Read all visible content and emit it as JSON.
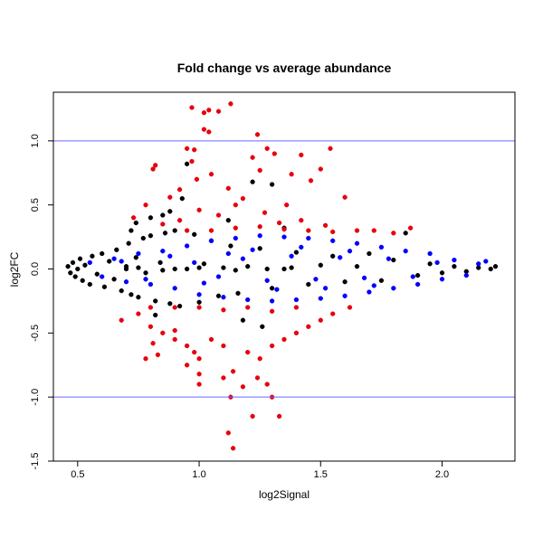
{
  "chart_data": {
    "type": "scatter",
    "title": "Fold change vs average abundance",
    "xlabel": "log2Signal",
    "ylabel": "log2FC",
    "xlim": [
      0.4,
      2.3
    ],
    "ylim": [
      -1.5,
      1.38
    ],
    "x_ticks": [
      0.5,
      1.0,
      1.5,
      2.0
    ],
    "x_tick_labels": [
      "0.5",
      "1.0",
      "1.5",
      "2.0"
    ],
    "y_ticks": [
      -1.5,
      -1.0,
      -0.5,
      0.0,
      0.5,
      1.0
    ],
    "y_tick_labels": [
      "-1.5",
      "-1.0",
      "-0.5",
      "0.0",
      "0.5",
      "1.0"
    ],
    "grid": false,
    "reference_lines": [
      {
        "axis": "y",
        "value": 1.0,
        "color": "#6a6aff"
      },
      {
        "axis": "y",
        "value": -1.0,
        "color": "#6a6aff"
      }
    ],
    "colors": {
      "red": "#e8000b",
      "black": "#000000",
      "blue": "#0000ff"
    },
    "series": [
      {
        "color": "black",
        "points": [
          [
            0.46,
            0.02
          ],
          [
            0.47,
            -0.03
          ],
          [
            0.48,
            0.05
          ],
          [
            0.49,
            -0.06
          ],
          [
            0.5,
            0.0
          ],
          [
            0.51,
            0.08
          ],
          [
            0.52,
            -0.09
          ],
          [
            0.53,
            0.03
          ],
          [
            0.55,
            -0.12
          ],
          [
            0.56,
            0.1
          ],
          [
            0.58,
            -0.04
          ],
          [
            0.6,
            0.12
          ],
          [
            0.61,
            -0.14
          ],
          [
            0.63,
            0.06
          ],
          [
            0.65,
            -0.08
          ],
          [
            0.66,
            0.15
          ],
          [
            0.68,
            -0.17
          ],
          [
            0.7,
            0.02
          ],
          [
            0.71,
            0.2
          ],
          [
            0.72,
            -0.2
          ],
          [
            0.74,
            0.09
          ],
          [
            0.75,
            -0.22
          ],
          [
            0.77,
            0.24
          ],
          [
            0.78,
            -0.03
          ],
          [
            0.8,
            0.26
          ],
          [
            0.82,
            -0.25
          ],
          [
            0.84,
            0.05
          ],
          [
            0.86,
            0.28
          ],
          [
            0.88,
            -0.27
          ],
          [
            0.9,
            0.3
          ],
          [
            0.92,
            -0.29
          ],
          [
            0.95,
            0.0
          ],
          [
            0.98,
            0.27
          ],
          [
            1.0,
            -0.26
          ],
          [
            1.02,
            0.04
          ],
          [
            1.05,
            0.22
          ],
          [
            1.08,
            -0.21
          ],
          [
            1.1,
            0.01
          ],
          [
            1.13,
            0.18
          ],
          [
            1.16,
            -0.19
          ],
          [
            1.2,
            0.02
          ],
          [
            1.25,
            0.16
          ],
          [
            1.3,
            -0.15
          ],
          [
            1.35,
            0.0
          ],
          [
            1.4,
            0.13
          ],
          [
            1.45,
            -0.12
          ],
          [
            1.5,
            0.03
          ],
          [
            1.55,
            0.1
          ],
          [
            1.6,
            -0.1
          ],
          [
            1.65,
            0.02
          ],
          [
            1.7,
            0.12
          ],
          [
            1.75,
            -0.09
          ],
          [
            1.8,
            0.07
          ],
          [
            1.85,
            0.28
          ],
          [
            1.9,
            -0.05
          ],
          [
            1.95,
            0.04
          ],
          [
            2.0,
            -0.03
          ],
          [
            2.05,
            0.02
          ],
          [
            2.1,
            -0.02
          ],
          [
            2.15,
            0.01
          ],
          [
            2.2,
            0.0
          ],
          [
            2.22,
            0.02
          ],
          [
            0.72,
            0.3
          ],
          [
            0.74,
            0.36
          ],
          [
            0.8,
            0.4
          ],
          [
            0.85,
            0.42
          ],
          [
            0.82,
            -0.36
          ],
          [
            0.88,
            0.45
          ],
          [
            0.93,
            0.55
          ],
          [
            0.95,
            0.82
          ],
          [
            1.12,
            0.38
          ],
          [
            1.18,
            -0.4
          ],
          [
            1.22,
            0.68
          ],
          [
            1.26,
            -0.45
          ],
          [
            1.3,
            0.66
          ],
          [
            1.35,
            0.32
          ],
          [
            0.7,
            0.0
          ],
          [
            0.75,
            0.01
          ],
          [
            0.85,
            -0.01
          ],
          [
            0.9,
            0.0
          ],
          [
            1.0,
            0.01
          ],
          [
            1.15,
            -0.01
          ],
          [
            1.28,
            0.0
          ],
          [
            1.38,
            0.01
          ]
        ]
      },
      {
        "color": "blue",
        "points": [
          [
            0.55,
            0.05
          ],
          [
            0.6,
            -0.06
          ],
          [
            0.65,
            0.08
          ],
          [
            0.7,
            -0.1
          ],
          [
            0.75,
            0.12
          ],
          [
            0.8,
            -0.12
          ],
          [
            0.85,
            0.14
          ],
          [
            0.9,
            -0.15
          ],
          [
            0.95,
            0.18
          ],
          [
            1.0,
            -0.2
          ],
          [
            1.05,
            0.22
          ],
          [
            1.1,
            -0.22
          ],
          [
            1.15,
            0.24
          ],
          [
            1.2,
            -0.24
          ],
          [
            1.25,
            0.26
          ],
          [
            1.3,
            -0.25
          ],
          [
            1.35,
            0.25
          ],
          [
            1.4,
            -0.24
          ],
          [
            1.45,
            0.24
          ],
          [
            1.5,
            -0.23
          ],
          [
            1.55,
            0.22
          ],
          [
            1.6,
            -0.21
          ],
          [
            1.65,
            0.2
          ],
          [
            1.7,
            -0.18
          ],
          [
            1.75,
            0.17
          ],
          [
            1.8,
            -0.15
          ],
          [
            1.85,
            0.14
          ],
          [
            1.9,
            -0.12
          ],
          [
            1.95,
            0.12
          ],
          [
            2.0,
            -0.08
          ],
          [
            2.05,
            0.07
          ],
          [
            2.1,
            -0.05
          ],
          [
            2.15,
            0.04
          ],
          [
            2.18,
            0.06
          ],
          [
            0.98,
            0.05
          ],
          [
            1.08,
            -0.06
          ],
          [
            1.18,
            0.08
          ],
          [
            1.28,
            -0.09
          ],
          [
            1.38,
            0.1
          ],
          [
            1.48,
            -0.08
          ],
          [
            1.58,
            0.09
          ],
          [
            1.68,
            -0.07
          ],
          [
            1.78,
            0.08
          ],
          [
            1.88,
            -0.06
          ],
          [
            1.98,
            0.05
          ],
          [
            0.88,
            0.1
          ],
          [
            0.78,
            -0.08
          ],
          [
            0.68,
            0.06
          ],
          [
            1.22,
            0.15
          ],
          [
            1.32,
            -0.16
          ],
          [
            1.42,
            0.17
          ],
          [
            1.52,
            -0.15
          ],
          [
            1.62,
            0.14
          ],
          [
            1.72,
            -0.13
          ],
          [
            1.12,
            0.12
          ],
          [
            1.02,
            -0.11
          ]
        ]
      },
      {
        "color": "red",
        "points": [
          [
            0.97,
            1.26
          ],
          [
            1.04,
            1.24
          ],
          [
            1.02,
            1.22
          ],
          [
            1.08,
            1.23
          ],
          [
            1.13,
            1.29
          ],
          [
            1.24,
            1.05
          ],
          [
            1.02,
            1.09
          ],
          [
            1.04,
            1.07
          ],
          [
            0.95,
            0.94
          ],
          [
            0.98,
            0.93
          ],
          [
            1.22,
            0.87
          ],
          [
            1.28,
            0.94
          ],
          [
            1.31,
            0.9
          ],
          [
            1.42,
            0.89
          ],
          [
            1.54,
            0.94
          ],
          [
            1.5,
            0.78
          ],
          [
            0.82,
            0.81
          ],
          [
            0.81,
            0.78
          ],
          [
            0.97,
            0.84
          ],
          [
            0.99,
            0.7
          ],
          [
            1.05,
            0.74
          ],
          [
            1.12,
            0.63
          ],
          [
            1.15,
            0.5
          ],
          [
            1.25,
            0.77
          ],
          [
            1.38,
            0.74
          ],
          [
            1.46,
            0.69
          ],
          [
            1.6,
            0.56
          ],
          [
            1.36,
            0.5
          ],
          [
            0.73,
            0.4
          ],
          [
            0.78,
            0.5
          ],
          [
            0.88,
            0.56
          ],
          [
            0.92,
            0.62
          ],
          [
            0.92,
            0.38
          ],
          [
            1.0,
            0.46
          ],
          [
            1.08,
            0.42
          ],
          [
            1.18,
            0.55
          ],
          [
            1.27,
            0.44
          ],
          [
            1.33,
            0.36
          ],
          [
            1.42,
            0.38
          ],
          [
            1.52,
            0.34
          ],
          [
            1.65,
            0.3
          ],
          [
            1.72,
            0.3
          ],
          [
            1.8,
            0.28
          ],
          [
            1.87,
            0.32
          ],
          [
            0.85,
            0.35
          ],
          [
            0.95,
            0.3
          ],
          [
            1.05,
            0.3
          ],
          [
            1.15,
            0.32
          ],
          [
            1.25,
            0.33
          ],
          [
            1.35,
            0.31
          ],
          [
            1.45,
            0.3
          ],
          [
            1.55,
            0.29
          ],
          [
            0.68,
            -0.4
          ],
          [
            0.75,
            -0.35
          ],
          [
            0.8,
            -0.45
          ],
          [
            0.85,
            -0.5
          ],
          [
            0.9,
            -0.55
          ],
          [
            0.95,
            -0.6
          ],
          [
            0.98,
            -0.65
          ],
          [
            1.0,
            -0.7
          ],
          [
            1.05,
            -0.55
          ],
          [
            1.1,
            -0.6
          ],
          [
            1.14,
            -0.8
          ],
          [
            1.2,
            -0.65
          ],
          [
            1.25,
            -0.7
          ],
          [
            1.3,
            -0.6
          ],
          [
            1.35,
            -0.55
          ],
          [
            1.4,
            -0.5
          ],
          [
            1.45,
            -0.45
          ],
          [
            1.5,
            -0.4
          ],
          [
            1.55,
            -0.35
          ],
          [
            1.62,
            -0.3
          ],
          [
            0.81,
            -0.58
          ],
          [
            0.83,
            -0.67
          ],
          [
            0.78,
            -0.7
          ],
          [
            0.95,
            -0.75
          ],
          [
            1.0,
            -0.9
          ],
          [
            1.1,
            -0.85
          ],
          [
            1.13,
            -1.0
          ],
          [
            1.18,
            -0.92
          ],
          [
            1.24,
            -0.85
          ],
          [
            1.28,
            -0.9
          ],
          [
            1.3,
            -1.0
          ],
          [
            1.33,
            -1.15
          ],
          [
            1.22,
            -1.15
          ],
          [
            1.12,
            -1.28
          ],
          [
            1.14,
            -1.4
          ],
          [
            1.0,
            -0.82
          ],
          [
            0.9,
            -0.48
          ],
          [
            1.0,
            -0.3
          ],
          [
            1.1,
            -0.32
          ],
          [
            1.2,
            -0.3
          ],
          [
            1.3,
            -0.33
          ],
          [
            1.4,
            -0.3
          ],
          [
            0.9,
            -0.3
          ],
          [
            0.8,
            -0.3
          ]
        ]
      }
    ]
  }
}
